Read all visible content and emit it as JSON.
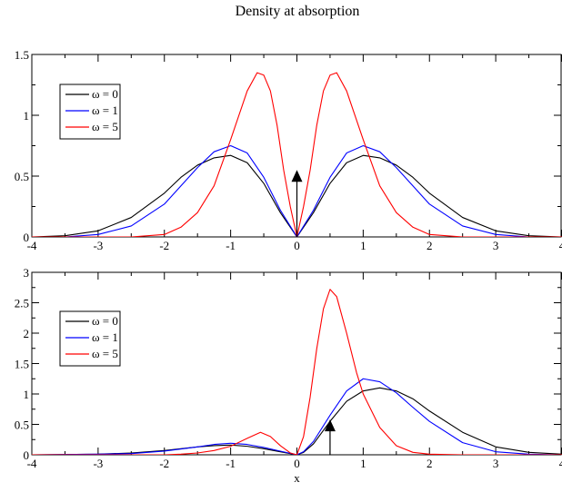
{
  "title": "Density at absorption",
  "chart_data": [
    {
      "type": "line",
      "title": "Density at absorption",
      "xlabel": "",
      "ylabel": "",
      "xlim": [
        -4,
        4
      ],
      "ylim": [
        0,
        1.5
      ],
      "x_ticks": [
        -4,
        -3,
        -2,
        -1,
        0,
        1,
        2,
        3,
        4
      ],
      "x_tick_labels": [
        "-4",
        "-3",
        "-2",
        "-1",
        "0",
        "1",
        "2",
        "3",
        "4"
      ],
      "y_ticks": [
        0,
        0.5,
        1,
        1.5
      ],
      "y_tick_labels": [
        "0",
        "0.5",
        "1",
        "1.5"
      ],
      "grid": false,
      "legend_position": "top-left",
      "arrow": {
        "x": 0,
        "y_from": 0,
        "y_to": 0.55
      },
      "series": [
        {
          "name": "ω = 0",
          "color": "#000000",
          "x": [
            -4,
            -3.5,
            -3,
            -2.5,
            -2,
            -1.75,
            -1.5,
            -1.25,
            -1,
            -0.75,
            -0.5,
            -0.25,
            0,
            0.25,
            0.5,
            0.75,
            1,
            1.25,
            1.5,
            1.75,
            2,
            2.5,
            3,
            3.5,
            4
          ],
          "y": [
            0,
            0.01,
            0.05,
            0.16,
            0.36,
            0.49,
            0.59,
            0.65,
            0.67,
            0.61,
            0.44,
            0.2,
            0,
            0.2,
            0.44,
            0.61,
            0.67,
            0.65,
            0.59,
            0.49,
            0.36,
            0.16,
            0.05,
            0.01,
            0
          ]
        },
        {
          "name": "ω = 1",
          "color": "#0000ff",
          "x": [
            -4,
            -3.5,
            -3,
            -2.5,
            -2,
            -1.75,
            -1.5,
            -1.25,
            -1,
            -0.75,
            -0.5,
            -0.25,
            0,
            0.25,
            0.5,
            0.75,
            1,
            1.25,
            1.5,
            1.75,
            2,
            2.5,
            3,
            3.5,
            4
          ],
          "y": [
            0,
            0,
            0.02,
            0.09,
            0.27,
            0.42,
            0.57,
            0.7,
            0.75,
            0.69,
            0.49,
            0.22,
            0,
            0.22,
            0.49,
            0.69,
            0.75,
            0.7,
            0.57,
            0.42,
            0.27,
            0.09,
            0.02,
            0,
            0
          ]
        },
        {
          "name": "ω = 5",
          "color": "#ff0000",
          "x": [
            -4,
            -2.5,
            -2,
            -1.75,
            -1.5,
            -1.25,
            -1,
            -0.75,
            -0.6,
            -0.5,
            -0.4,
            -0.3,
            -0.2,
            -0.1,
            0,
            0.1,
            0.2,
            0.3,
            0.4,
            0.5,
            0.6,
            0.75,
            1,
            1.25,
            1.5,
            1.75,
            2,
            2.5,
            4
          ],
          "y": [
            0,
            0,
            0.02,
            0.08,
            0.2,
            0.42,
            0.8,
            1.2,
            1.35,
            1.33,
            1.2,
            0.92,
            0.55,
            0.25,
            0,
            0.25,
            0.55,
            0.92,
            1.2,
            1.33,
            1.35,
            1.2,
            0.8,
            0.42,
            0.2,
            0.08,
            0.02,
            0,
            0
          ]
        }
      ]
    },
    {
      "type": "line",
      "title": "",
      "xlabel": "x",
      "ylabel": "",
      "xlim": [
        -4,
        4
      ],
      "ylim": [
        0,
        3
      ],
      "x_ticks": [
        -4,
        -3,
        -2,
        -1,
        0,
        1,
        2,
        3,
        4
      ],
      "x_tick_labels": [
        "-4",
        "-3",
        "-2",
        "-1",
        "0",
        "1",
        "2",
        "3",
        "4"
      ],
      "y_ticks": [
        0,
        0.5,
        1,
        1.5,
        2,
        2.5,
        3
      ],
      "y_tick_labels": [
        "0",
        "0.5",
        "1",
        "1.5",
        "2",
        "2.5",
        "3"
      ],
      "grid": false,
      "legend_position": "top-left",
      "arrow": {
        "x": 0.5,
        "y_from": 0,
        "y_to": 0.58
      },
      "series": [
        {
          "name": "ω = 0",
          "color": "#000000",
          "x": [
            -4,
            -3,
            -2.5,
            -2,
            -1.5,
            -1.25,
            -1,
            -0.75,
            -0.5,
            -0.25,
            0,
            0.1,
            0.25,
            0.5,
            0.75,
            1,
            1.25,
            1.5,
            1.75,
            2,
            2.5,
            3,
            3.5,
            4
          ],
          "y": [
            0,
            0.01,
            0.03,
            0.07,
            0.13,
            0.15,
            0.16,
            0.14,
            0.1,
            0.05,
            0,
            0.04,
            0.18,
            0.55,
            0.88,
            1.05,
            1.1,
            1.05,
            0.92,
            0.72,
            0.37,
            0.13,
            0.04,
            0.01
          ]
        },
        {
          "name": "ω = 1",
          "color": "#0000ff",
          "x": [
            -4,
            -3,
            -2.5,
            -2,
            -1.5,
            -1.25,
            -1,
            -0.75,
            -0.5,
            -0.25,
            0,
            0.1,
            0.25,
            0.5,
            0.75,
            1,
            1.25,
            1.5,
            1.75,
            2,
            2.5,
            3,
            3.5,
            4
          ],
          "y": [
            0,
            0.01,
            0.02,
            0.06,
            0.13,
            0.17,
            0.19,
            0.17,
            0.12,
            0.06,
            0,
            0.05,
            0.22,
            0.65,
            1.05,
            1.25,
            1.2,
            1.02,
            0.78,
            0.55,
            0.2,
            0.05,
            0.01,
            0
          ]
        },
        {
          "name": "ω = 5",
          "color": "#ff0000",
          "x": [
            -4,
            -2,
            -1.75,
            -1.5,
            -1.25,
            -1,
            -0.75,
            -0.55,
            -0.4,
            -0.25,
            -0.1,
            0,
            0.1,
            0.2,
            0.3,
            0.4,
            0.5,
            0.6,
            0.75,
            0.9,
            1,
            1.25,
            1.5,
            1.75,
            2,
            2.5,
            4
          ],
          "y": [
            0,
            0,
            0.01,
            0.03,
            0.07,
            0.14,
            0.27,
            0.37,
            0.3,
            0.15,
            0.03,
            0,
            0.3,
            0.95,
            1.75,
            2.4,
            2.72,
            2.6,
            2.0,
            1.35,
            1.0,
            0.45,
            0.15,
            0.04,
            0.01,
            0,
            0
          ]
        }
      ]
    }
  ]
}
